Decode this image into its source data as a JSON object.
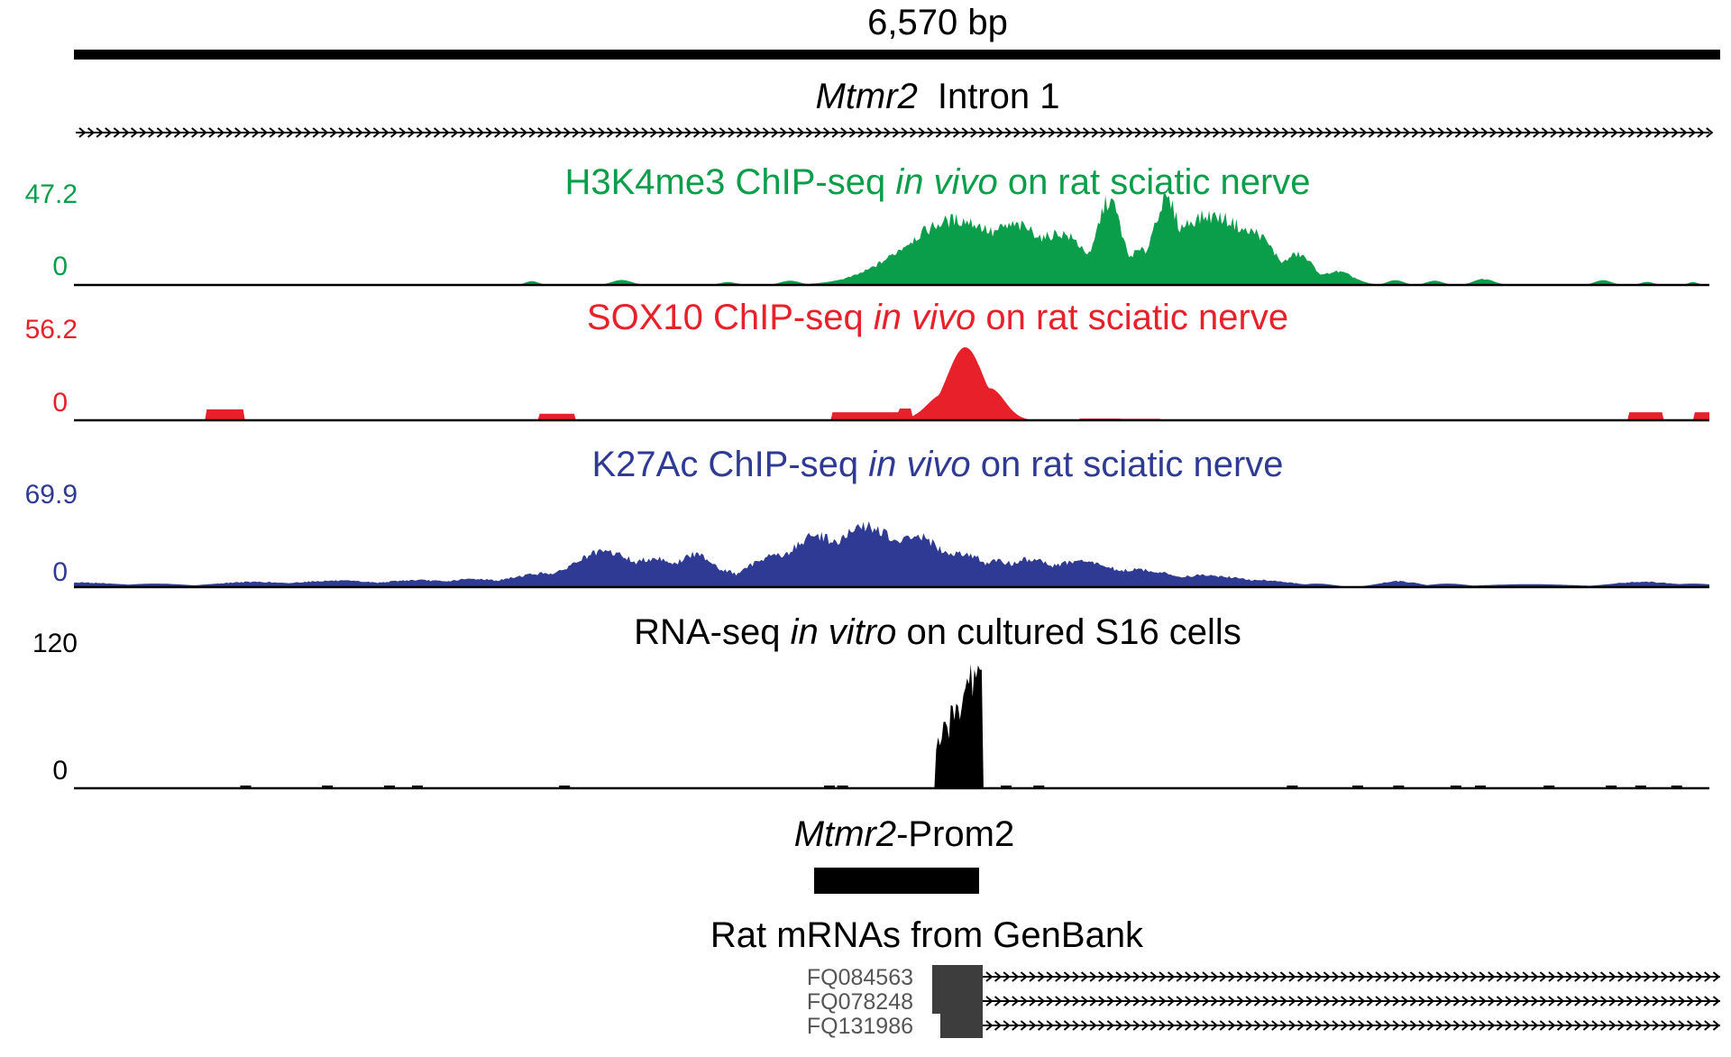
{
  "scale": {
    "label": "6,570 bp"
  },
  "gene_track": {
    "gene": "Mtmr2",
    "label": "Intron 1"
  },
  "tracks": [
    {
      "id": "h3k4me3",
      "title_pre": "H3K4me3 ChIP-seq ",
      "title_italic": "in vivo",
      "title_post": " on rat sciatic nerve",
      "color": "#0a9e4a",
      "ymax_label": "47.2",
      "ymin_label": "0",
      "ymax": 47.2,
      "peaks": [
        [
          0.28,
          0.004,
          2.0
        ],
        [
          0.335,
          0.006,
          2.6
        ],
        [
          0.4,
          0.005,
          1.5
        ],
        [
          0.438,
          0.006,
          2.2
        ],
        [
          0.485,
          0.006,
          1.8
        ],
        [
          0.54,
          0.032,
          34.0
        ],
        [
          0.575,
          0.025,
          31.0
        ],
        [
          0.602,
          0.018,
          27.0
        ],
        [
          0.633,
          0.008,
          44.0
        ],
        [
          0.653,
          0.012,
          18.0
        ],
        [
          0.668,
          0.009,
          44.0
        ],
        [
          0.695,
          0.03,
          36.0
        ],
        [
          0.72,
          0.014,
          28.0
        ],
        [
          0.748,
          0.01,
          16.0
        ],
        [
          0.772,
          0.01,
          7.0
        ],
        [
          0.808,
          0.005,
          2.5
        ],
        [
          0.832,
          0.005,
          2.2
        ],
        [
          0.862,
          0.006,
          3.2
        ],
        [
          0.935,
          0.005,
          2.5
        ],
        [
          0.962,
          0.004,
          1.6
        ],
        [
          0.99,
          0.003,
          1.5
        ]
      ],
      "base": 0.25
    },
    {
      "id": "sox10",
      "title_pre": "SOX10 ChIP-seq ",
      "title_italic": "in vivo",
      "title_post": " on rat sciatic nerve",
      "color": "#e8202a",
      "ymax_label": "56.2",
      "ymin_label": "0",
      "ymax": 56.2,
      "blocks": [
        [
          0.081,
          0.104,
          7.5
        ],
        [
          0.284,
          0.307,
          4.5
        ],
        [
          0.463,
          0.505,
          5.5
        ],
        [
          0.505,
          0.512,
          8.0
        ],
        [
          0.95,
          0.972,
          5.5
        ],
        [
          0.99,
          1.0,
          5.5
        ],
        [
          0.615,
          0.64,
          1.2
        ],
        [
          0.64,
          0.665,
          1.0
        ]
      ],
      "peaks": [
        [
          0.532,
          0.01,
          18.0
        ],
        [
          0.545,
          0.011,
          50.0
        ],
        [
          0.56,
          0.009,
          22.0
        ]
      ],
      "base": 0.25
    },
    {
      "id": "k27ac",
      "title_pre": "K27Ac ChIP-seq  ",
      "title_italic": "in vivo",
      "title_post": " on rat sciatic nerve",
      "color": "#2e3a94",
      "ymax_label": "69.9",
      "ymin_label": "0",
      "ymax": 69.9,
      "peaks": [
        [
          0.0,
          0.03,
          4.0
        ],
        [
          0.05,
          0.02,
          3.0
        ],
        [
          0.11,
          0.025,
          4.5
        ],
        [
          0.16,
          0.03,
          5.5
        ],
        [
          0.21,
          0.025,
          6.0
        ],
        [
          0.245,
          0.02,
          7.0
        ],
        [
          0.29,
          0.025,
          12.0
        ],
        [
          0.325,
          0.022,
          30.0
        ],
        [
          0.355,
          0.018,
          25.0
        ],
        [
          0.38,
          0.014,
          28.0
        ],
        [
          0.398,
          0.01,
          14.0
        ],
        [
          0.41,
          0.004,
          2.0
        ],
        [
          0.43,
          0.018,
          28.0
        ],
        [
          0.455,
          0.02,
          44.0
        ],
        [
          0.485,
          0.022,
          52.0
        ],
        [
          0.515,
          0.018,
          44.0
        ],
        [
          0.54,
          0.02,
          30.0
        ],
        [
          0.565,
          0.02,
          22.0
        ],
        [
          0.585,
          0.018,
          24.0
        ],
        [
          0.615,
          0.025,
          22.0
        ],
        [
          0.65,
          0.025,
          15.0
        ],
        [
          0.69,
          0.03,
          10.0
        ],
        [
          0.725,
          0.02,
          6.0
        ],
        [
          0.76,
          0.01,
          3.0
        ],
        [
          0.81,
          0.012,
          5.0
        ],
        [
          0.84,
          0.012,
          3.0
        ],
        [
          0.89,
          0.03,
          2.5
        ],
        [
          0.96,
          0.02,
          4.5
        ],
        [
          0.99,
          0.015,
          3.0
        ]
      ],
      "base": 0.8
    },
    {
      "id": "rnaseq",
      "title_pre": "RNA-seq ",
      "title_italic": "in vitro",
      "title_post": " on cultured S16 cells",
      "color": "#000000",
      "ymax_label": "120",
      "ymin_label": "0",
      "ymax": 120,
      "ramp": [
        0.527,
        0.556,
        40.0,
        118.0
      ],
      "ticks": [
        0.105,
        0.155,
        0.193,
        0.21,
        0.3,
        0.462,
        0.47,
        0.57,
        0.59,
        0.745,
        0.785,
        0.81,
        0.845,
        0.86,
        0.902,
        0.94,
        0.958,
        0.98
      ],
      "base": 0.5
    }
  ],
  "promoter": {
    "gene": "Mtmr2",
    "label": "-Prom2"
  },
  "mrnas": {
    "title": "Rat mRNAs from GenBank",
    "items": [
      {
        "accession": "FQ084563"
      },
      {
        "accession": "FQ078248"
      },
      {
        "accession": "FQ131986"
      }
    ]
  }
}
